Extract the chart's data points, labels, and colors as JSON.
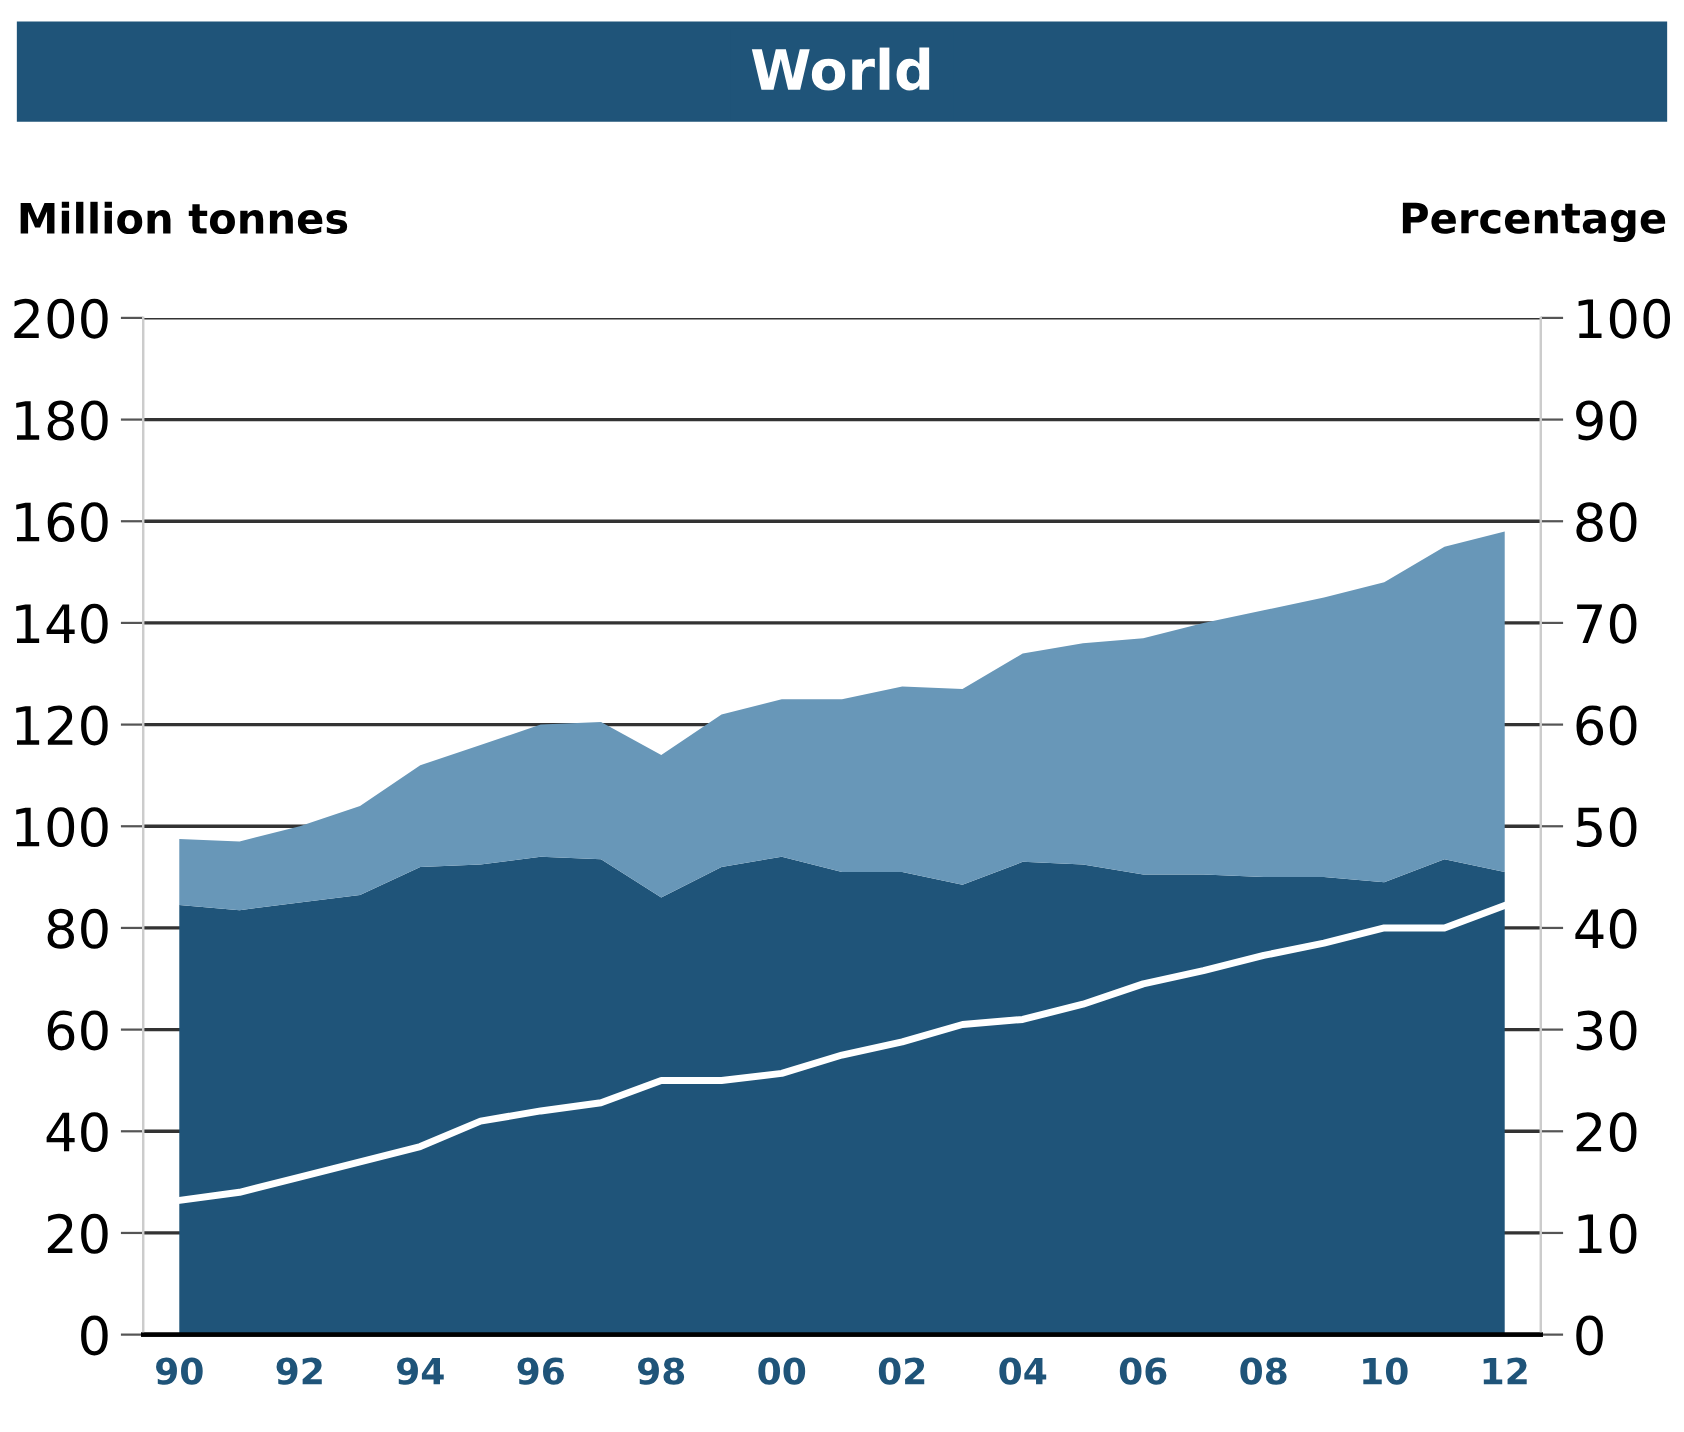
{
  "chart_data": {
    "type": "area",
    "title": "World",
    "ylabel": "Million tonnes",
    "y2label": "Percentage",
    "categories": [
      "90",
      null,
      "92",
      null,
      "94",
      null,
      "96",
      null,
      "98",
      null,
      "00",
      null,
      "02",
      null,
      "04",
      null,
      "06",
      null,
      "08",
      null,
      "10",
      null,
      "12"
    ],
    "stacked": true,
    "series": [
      {
        "color": "#1f5479",
        "values": [
          84.5,
          83.5,
          85,
          86.5,
          92,
          92.5,
          94,
          93.5,
          86,
          92,
          94,
          91,
          91,
          88.5,
          93,
          92.5,
          90.5,
          90.5,
          90,
          90,
          89,
          93.5,
          91
        ]
      },
      {
        "color": "#6897b8",
        "values": [
          13,
          13.5,
          15,
          17.5,
          20,
          23.5,
          26,
          27,
          28,
          30,
          31,
          34,
          36.5,
          38.5,
          41,
          43.5,
          46.5,
          49.5,
          52.5,
          55,
          59,
          61.5,
          67
        ]
      },
      {
        "type": "line",
        "axis": "y2",
        "color": "#ffffff",
        "values": [
          13.2,
          14,
          15.5,
          17,
          18.5,
          21,
          22,
          22.8,
          25,
          25,
          25.7,
          27.5,
          28.8,
          30.5,
          31,
          32.5,
          34.5,
          35.8,
          37.3,
          38.5,
          40,
          40,
          42.2
        ]
      }
    ],
    "ylim": [
      0,
      200
    ],
    "yticks": [
      0,
      20,
      40,
      60,
      80,
      100,
      120,
      140,
      160,
      180,
      200
    ],
    "y2lim": [
      0,
      100
    ],
    "y2ticks": [
      0,
      10,
      20,
      30,
      40,
      50,
      60,
      70,
      80,
      90,
      100
    ],
    "grid": "y",
    "legend": false
  }
}
